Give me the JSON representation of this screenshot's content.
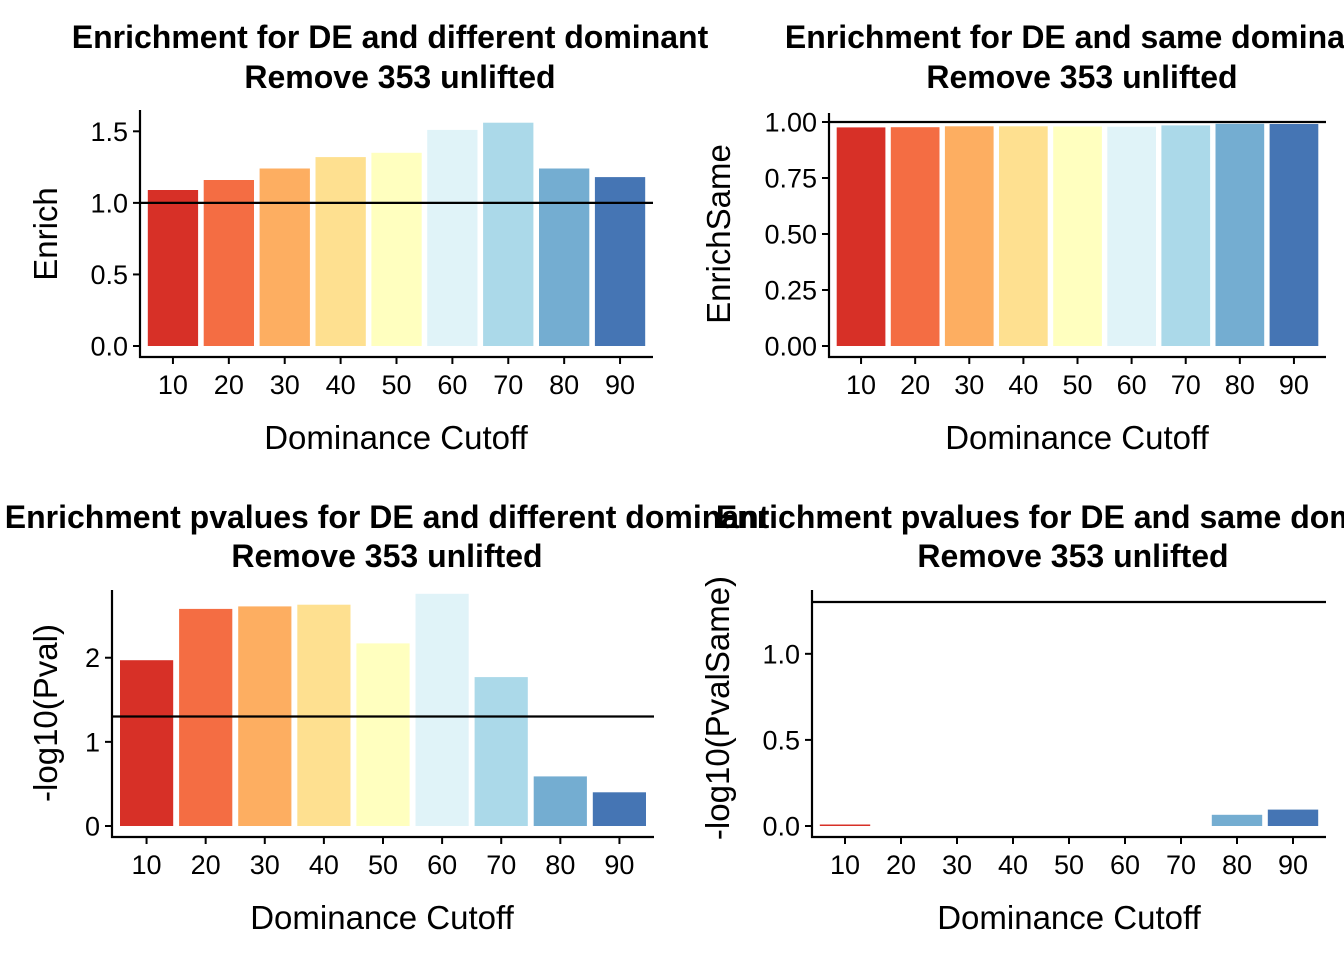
{
  "chart_data": [
    {
      "type": "bar",
      "title": "Enrichment for DE and different dominant",
      "subtitle": "Remove 353 unlifted",
      "xlabel": "Dominance Cutoff",
      "ylabel": "Enrich",
      "categories": [
        "10",
        "20",
        "30",
        "40",
        "50",
        "60",
        "70",
        "80",
        "90"
      ],
      "values": [
        1.09,
        1.16,
        1.24,
        1.32,
        1.35,
        1.51,
        1.56,
        1.24,
        1.18
      ],
      "colors": [
        "#d73027",
        "#f46d43",
        "#fdae61",
        "#fee090",
        "#ffffbf",
        "#e0f3f8",
        "#abd9e9",
        "#74add1",
        "#4575b4"
      ],
      "yticks": [
        "0.0",
        "0.5",
        "1.0",
        "1.5"
      ],
      "ylim": [
        0,
        1.6
      ],
      "hline": 1.0,
      "legend": "none",
      "grid": false
    },
    {
      "type": "bar",
      "title": "Enrichment for DE and same dominant",
      "subtitle": "Remove 353 unlifted",
      "xlabel": "Dominance Cutoff",
      "ylabel": "EnrichSame",
      "categories": [
        "10",
        "20",
        "30",
        "40",
        "50",
        "60",
        "70",
        "80",
        "90"
      ],
      "values": [
        0.976,
        0.977,
        0.981,
        0.981,
        0.98,
        0.979,
        0.985,
        0.992,
        0.991
      ],
      "colors": [
        "#d73027",
        "#f46d43",
        "#fdae61",
        "#fee090",
        "#ffffbf",
        "#e0f3f8",
        "#abd9e9",
        "#74add1",
        "#4575b4"
      ],
      "yticks": [
        "0.00",
        "0.25",
        "0.50",
        "0.75",
        "1.00"
      ],
      "ylim": [
        0,
        1.0
      ],
      "hline": 1.0,
      "legend": "none",
      "grid": false
    },
    {
      "type": "bar",
      "title": "Enrichment pvalues for DE and different dominant",
      "subtitle": "Remove 353 unlifted",
      "xlabel": "Dominance Cutoff",
      "ylabel": "-log10(Pval)",
      "categories": [
        "10",
        "20",
        "30",
        "40",
        "50",
        "60",
        "70",
        "80",
        "90"
      ],
      "values": [
        1.97,
        2.58,
        2.61,
        2.63,
        2.17,
        2.76,
        1.77,
        0.59,
        0.4
      ],
      "colors": [
        "#d73027",
        "#f46d43",
        "#fdae61",
        "#fee090",
        "#ffffbf",
        "#e0f3f8",
        "#abd9e9",
        "#74add1",
        "#4575b4"
      ],
      "yticks": [
        "0",
        "1",
        "2"
      ],
      "ylim": [
        0,
        2.9
      ],
      "hline": 1.301,
      "legend": "none",
      "grid": false
    },
    {
      "type": "bar",
      "title": "Enrichment pvalues for DE and same dominant",
      "subtitle": "Remove 353 unlifted",
      "xlabel": "Dominance Cutoff",
      "ylabel": "-log10(PvalSame)",
      "categories": [
        "10",
        "20",
        "30",
        "40",
        "50",
        "60",
        "70",
        "80",
        "90"
      ],
      "values": [
        0.004,
        0,
        0,
        0,
        0,
        0,
        0,
        0.065,
        0.095
      ],
      "colors": [
        "#d73027",
        "#f46d43",
        "#fdae61",
        "#fee090",
        "#ffffbf",
        "#e0f3f8",
        "#abd9e9",
        "#74add1",
        "#4575b4"
      ],
      "yticks": [
        "0.0",
        "0.5",
        "1.0"
      ],
      "ylim": [
        0,
        1.33
      ],
      "hline": 1.301,
      "legend": "none",
      "grid": false
    }
  ]
}
